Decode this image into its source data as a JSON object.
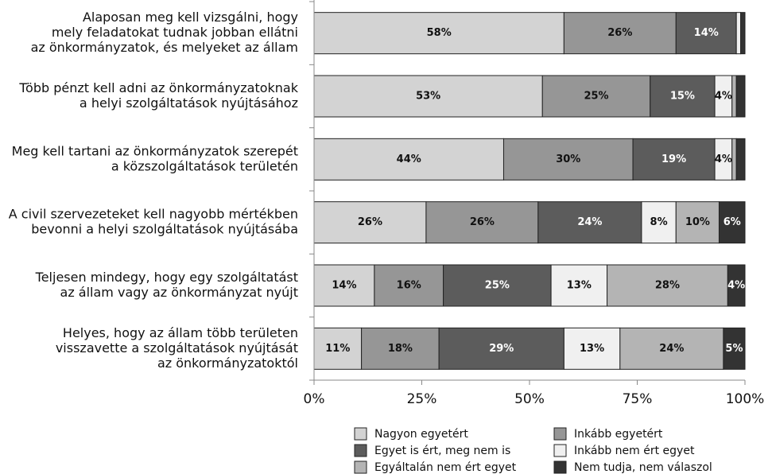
{
  "chart_data": {
    "type": "stacked_barh",
    "categories": [
      [
        "Alaposan meg kell vizsgálni, hogy",
        "mely feladatokat tudnak jobban ellátni",
        "az önkormányzatok, és melyeket az állam"
      ],
      [
        "Több pénzt kell adni az önkormányzatoknak",
        "a helyi szolgáltatások nyújtásához"
      ],
      [
        "Meg kell tartani az önkormányzatok szerepét",
        "a közszolgáltatások területén"
      ],
      [
        "A civil szervezeteket kell nagyobb mértékben",
        "bevonni a helyi szolgáltatások nyújtásába"
      ],
      [
        "Teljesen mindegy, hogy egy szolgáltatást",
        "az állam vagy az önkormányzat nyújt"
      ],
      [
        "Helyes, hogy az állam több területen",
        "visszavette a szolgáltatások nyújtását",
        "az önkormányzatoktól"
      ]
    ],
    "series": [
      {
        "name": "Nagyon egyetért",
        "color": "#d3d3d3",
        "values": [
          58,
          53,
          44,
          26,
          14,
          11
        ],
        "value_labels": [
          "58%",
          "53%",
          "44%",
          "26%",
          "14%",
          "11%"
        ]
      },
      {
        "name": "Inkább egyetért",
        "color": "#969696",
        "values": [
          26,
          25,
          30,
          26,
          16,
          18
        ],
        "value_labels": [
          "26%",
          "25%",
          "30%",
          "26%",
          "16%",
          "18%"
        ]
      },
      {
        "name": "Egyet is ért, meg nem is",
        "color": "#5c5c5c",
        "values": [
          14,
          15,
          19,
          24,
          25,
          29
        ],
        "value_labels": [
          "14%",
          "15%",
          "19%",
          "24%",
          "25%",
          "29%"
        ]
      },
      {
        "name": "Inkább nem ért egyet",
        "color": "#f0f0f0",
        "values": [
          1,
          4,
          4,
          8,
          13,
          13
        ],
        "value_labels": [
          null,
          "4%",
          "4%",
          "8%",
          "13%",
          "13%"
        ]
      },
      {
        "name": "Egyáltalán nem ért egyet",
        "color": "#b4b4b4",
        "values": [
          0,
          1,
          1,
          10,
          28,
          24
        ],
        "value_labels": [
          null,
          null,
          null,
          "10%",
          "28%",
          "24%"
        ]
      },
      {
        "name": "Nem tudja, nem válaszol",
        "color": "#333333",
        "values": [
          1,
          2,
          2,
          6,
          4,
          5
        ],
        "value_labels": [
          null,
          null,
          null,
          "6%",
          "4%",
          "5%"
        ]
      }
    ],
    "xlim": [
      0,
      100
    ],
    "xticks": [
      {
        "value": 0,
        "label": "0%"
      },
      {
        "value": 25,
        "label": "25%"
      },
      {
        "value": 50,
        "label": "50%"
      },
      {
        "value": 75,
        "label": "75%"
      },
      {
        "value": 100,
        "label": "100%"
      }
    ]
  }
}
